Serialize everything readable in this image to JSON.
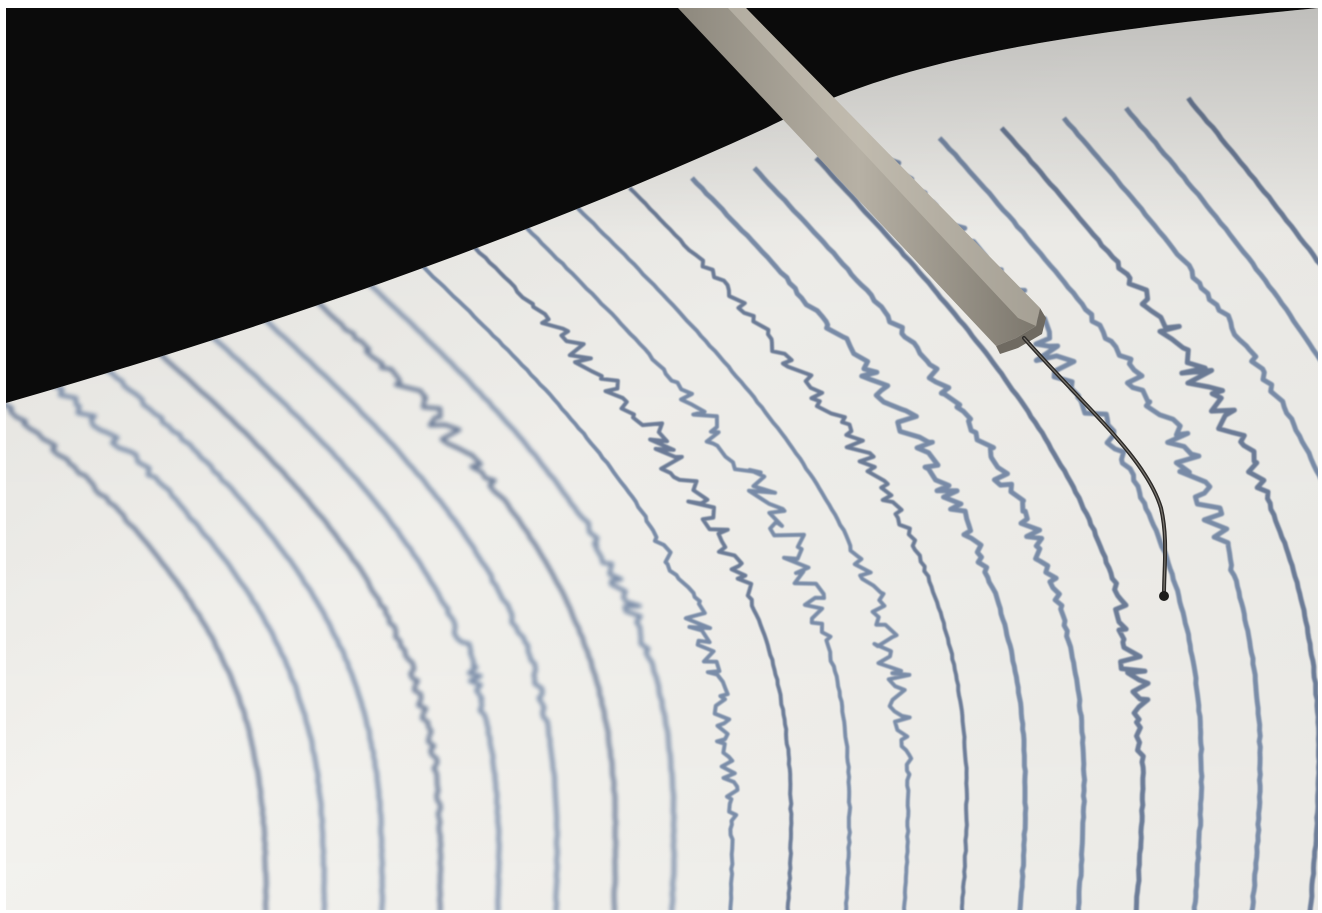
{
  "image": {
    "subject": "seismograph-recording",
    "colors": {
      "background_dark": "#0b0b0b",
      "paper": "#f1f0ec",
      "trace": "#6e83a3",
      "trace_dark": "#5e7190",
      "stylus_arm": "#a9a397",
      "stylus_needle": "#2c2a28"
    },
    "icons": [
      "stylus-arm",
      "stylus-needle",
      "seismic-traces",
      "recording-drum"
    ]
  }
}
